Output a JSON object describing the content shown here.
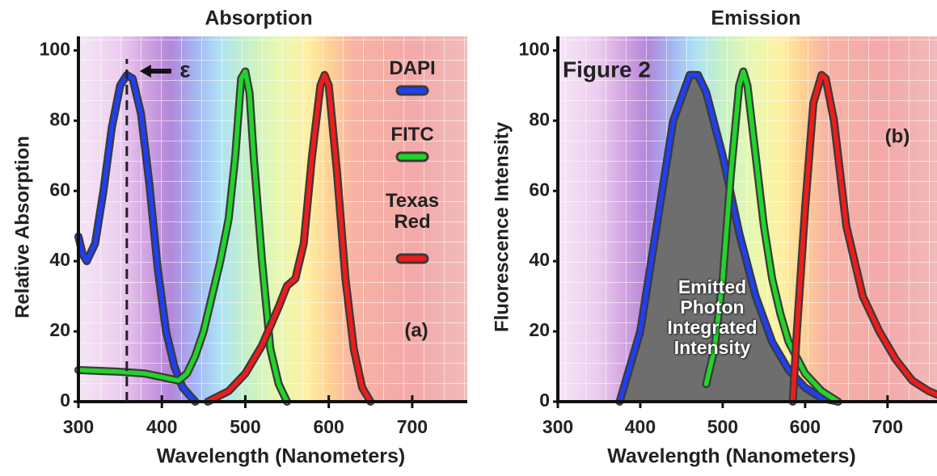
{
  "chart_data": [
    {
      "type": "line",
      "title": "Absorption",
      "x_label": "Wavelength (Nanometers)",
      "y_label": "Relative Absorption",
      "xlim": [
        300,
        766
      ],
      "ylim": [
        0,
        104
      ],
      "xticks": [
        300,
        400,
        500,
        600,
        700
      ],
      "yticks": [
        0,
        20,
        40,
        60,
        80,
        100
      ],
      "grid": true,
      "legend": "top-right",
      "panel_label": "(a)",
      "epsilon": {
        "label": "ε",
        "x": 358
      },
      "series": [
        {
          "name": "DAPI",
          "color": "#1f3ff0",
          "x": [
            300,
            305,
            310,
            320,
            330,
            340,
            350,
            358,
            365,
            375,
            385,
            395,
            405,
            415,
            425,
            440
          ],
          "values": [
            47,
            42,
            40,
            45,
            60,
            78,
            90,
            93,
            92,
            82,
            62,
            38,
            20,
            10,
            4,
            0
          ]
        },
        {
          "name": "FITC",
          "color": "#22d42a",
          "x": [
            300,
            350,
            380,
            400,
            420,
            430,
            440,
            450,
            460,
            470,
            480,
            488,
            495,
            500,
            505,
            510,
            520,
            530,
            540,
            550
          ],
          "values": [
            9,
            8.5,
            8,
            7,
            6,
            8,
            13,
            20,
            30,
            40,
            52,
            70,
            92,
            94,
            88,
            70,
            40,
            15,
            5,
            0
          ]
        },
        {
          "name": "Texas Red",
          "color": "#ee1c1c",
          "x": [
            455,
            480,
            500,
            520,
            540,
            550,
            560,
            570,
            580,
            590,
            595,
            600,
            610,
            620,
            630,
            640,
            650
          ],
          "values": [
            0,
            3,
            8,
            16,
            27,
            33,
            35,
            45,
            70,
            90,
            93,
            90,
            65,
            35,
            15,
            4,
            0
          ]
        }
      ]
    },
    {
      "type": "line",
      "title": "Emission",
      "x_label": "Wavelength (Nanometers)",
      "y_label": "Fluorescence Intensity",
      "xlim": [
        300,
        760
      ],
      "ylim": [
        0,
        104
      ],
      "xticks": [
        300,
        400,
        500,
        600,
        700
      ],
      "yticks": [
        0,
        20,
        40,
        60,
        80,
        100
      ],
      "grid": true,
      "figure_label": "Figure 2",
      "panel_label": "(b)",
      "area_label": "Emitted Photon Integrated Intensity",
      "series": [
        {
          "color": "#1f3ff0",
          "fill": "#6e6e6e",
          "x": [
            375,
            400,
            420,
            440,
            460,
            470,
            480,
            500,
            520,
            540,
            560,
            580,
            600,
            620,
            640
          ],
          "values": [
            0,
            20,
            50,
            80,
            93,
            93,
            88,
            70,
            48,
            30,
            17,
            9,
            4,
            1,
            0
          ]
        },
        {
          "color": "#22d42a",
          "x": [
            480,
            490,
            500,
            510,
            520,
            525,
            530,
            540,
            550,
            560,
            570,
            580,
            600,
            620,
            640
          ],
          "values": [
            5,
            15,
            35,
            65,
            90,
            94,
            90,
            70,
            50,
            35,
            25,
            17,
            8,
            3,
            0
          ]
        },
        {
          "color": "#ee1c1c",
          "x": [
            585,
            590,
            600,
            610,
            620,
            625,
            635,
            650,
            670,
            690,
            710,
            730,
            750,
            760
          ],
          "values": [
            0,
            20,
            55,
            85,
            93,
            92,
            80,
            50,
            30,
            20,
            12,
            6,
            3,
            2
          ]
        }
      ]
    }
  ]
}
